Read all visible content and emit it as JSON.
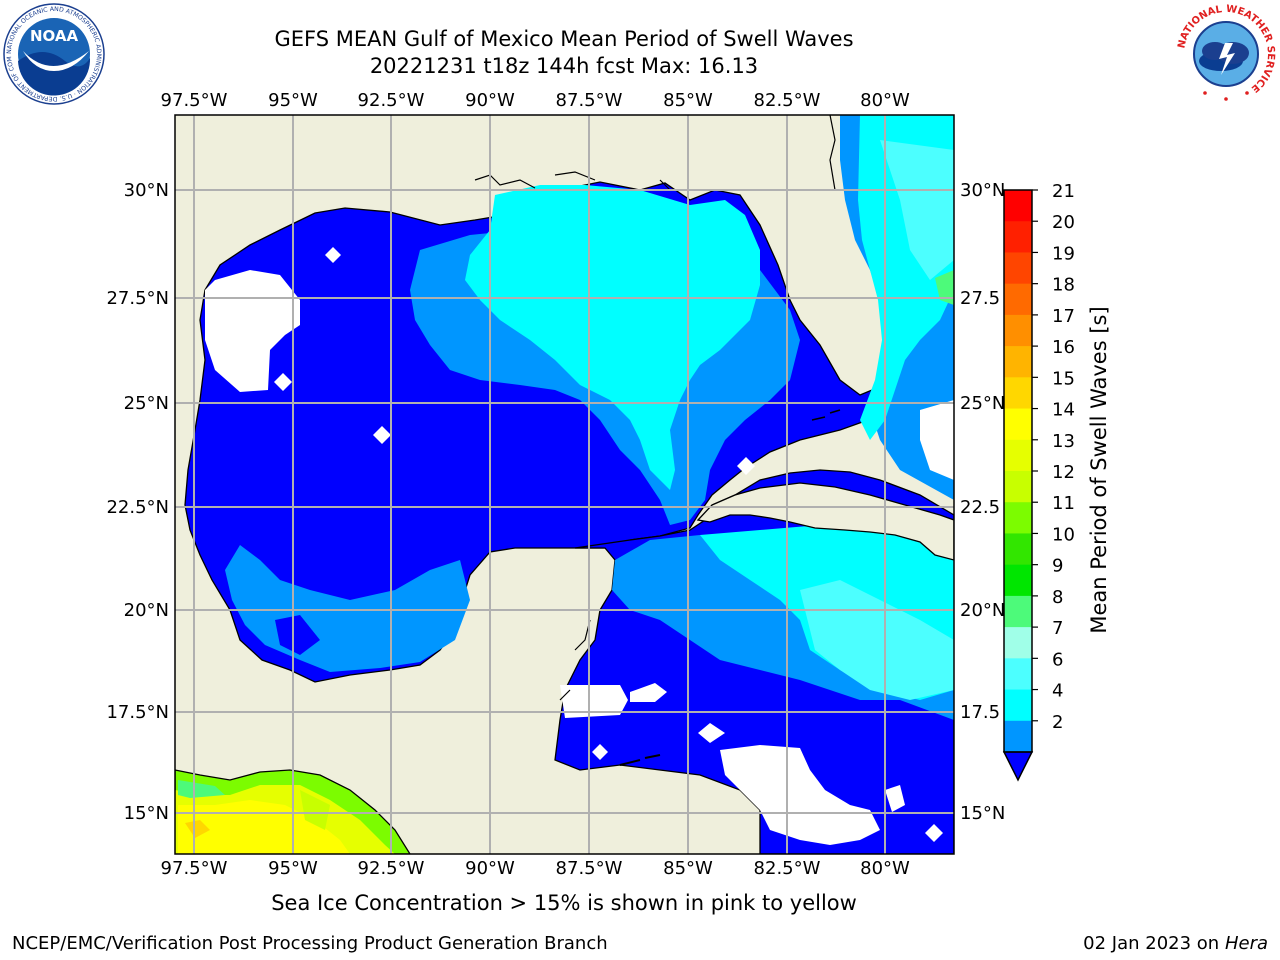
{
  "title": {
    "line1": "GEFS MEAN Gulf of Mexico Mean Period of Swell Waves",
    "line2": "20221231 t18z 144h fcst   Max: 16.13"
  },
  "map": {
    "lon_ticks": [
      "97.5°W",
      "95°W",
      "92.5°W",
      "90°W",
      "87.5°W",
      "85°W",
      "82.5°W",
      "80°W"
    ],
    "lat_ticks_left": [
      "30°N",
      "27.5°N",
      "25°N",
      "22.5°N",
      "20°N",
      "17.5°N",
      "15°N"
    ],
    "lat_ticks_right": [
      "30°N",
      "27.5",
      "25°N",
      "22.5",
      "20°N",
      "17.5",
      "15°N"
    ]
  },
  "colorbar": {
    "label": "Mean Period of Swell Waves [s]",
    "ticks": [
      "21",
      "20",
      "19",
      "18",
      "17",
      "16",
      "15",
      "14",
      "13",
      "12",
      "11",
      "10",
      "9",
      "8",
      "7",
      "6",
      "4",
      "2"
    ],
    "colors": [
      "#ff0000",
      "#ff2000",
      "#ff4500",
      "#ff6a00",
      "#ff8f00",
      "#ffb400",
      "#ffd700",
      "#ffff00",
      "#e6ff00",
      "#c8ff00",
      "#7cfc00",
      "#32e600",
      "#00e600",
      "#4dfa7a",
      "#a0ffe8",
      "#4cffff",
      "#00ffff",
      "#0096ff",
      "#0000ff"
    ]
  },
  "logos": {
    "noaa_text": "NOAA",
    "noaa_ring": "NATIONAL OCEANIC AND ATMOSPHERIC ADMINISTRATION · U.S. DEPARTMENT OF COMMERCE",
    "nws_ring": "NATIONAL WEATHER SERVICE"
  },
  "footer": {
    "note": "Sea Ice Concentration > 15% is shown in pink to yellow",
    "credit": "NCEP/EMC/Verification Post Processing Product Generation Branch",
    "date_prefix": "02 Jan 2023 on ",
    "date_host": "Hera"
  }
}
